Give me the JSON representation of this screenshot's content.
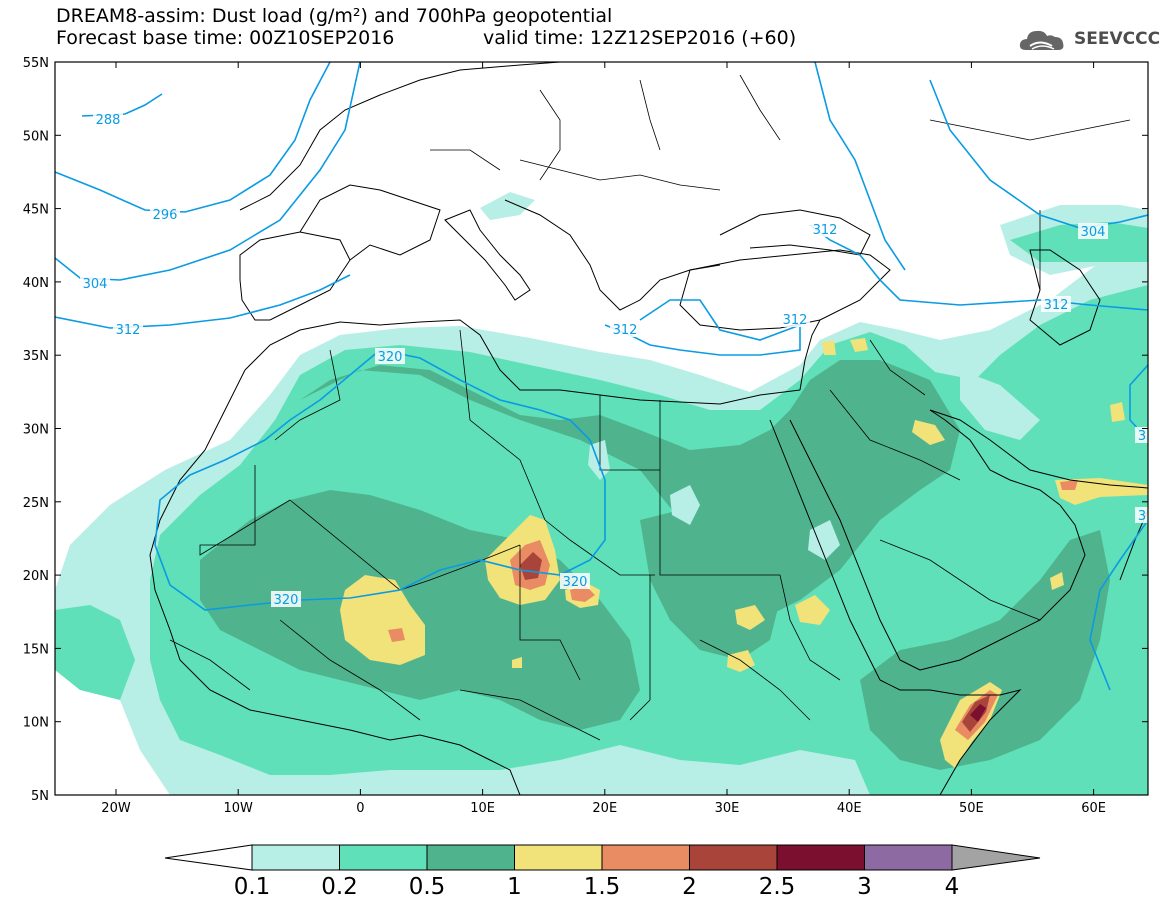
{
  "title": {
    "line1": "DREAM8-assim: Dust load (g/m²) and 700hPa geopotential",
    "base_time": "Forecast base time: 00Z10SEP2016",
    "valid_time": "valid time: 12Z12SEP2016 (+60)"
  },
  "logo": {
    "text": "SEEVCCC",
    "icon": "cloud-logo-icon"
  },
  "axes": {
    "lat_labels": [
      "55N",
      "50N",
      "45N",
      "40N",
      "35N",
      "30N",
      "25N",
      "20N",
      "15N",
      "10N",
      "5N"
    ],
    "lon_labels": [
      "20W",
      "10W",
      "0",
      "10E",
      "20E",
      "30E",
      "40E",
      "50E",
      "60E"
    ]
  },
  "isolines": {
    "color": "#0a9be3",
    "labels": [
      "288",
      "296",
      "304",
      "312",
      "312",
      "312",
      "312",
      "304",
      "312",
      "320",
      "320",
      "320",
      "3",
      "3"
    ]
  },
  "colorbar": {
    "labels": [
      "0.1",
      "0.2",
      "0.5",
      "1",
      "1.5",
      "2",
      "2.5",
      "3",
      "4"
    ],
    "colors": [
      "#b7eee6",
      "#5fe0b8",
      "#4fb48e",
      "#f1e27a",
      "#e98c63",
      "#a8443a",
      "#7a0f30",
      "#8e6aa3"
    ],
    "arrow_low_color": "#ffffff",
    "arrow_high_color": "#a3a3a3"
  },
  "colors": {
    "dust_lt": "#b7eee6",
    "dust_md": "#5fe0b8",
    "dust_dk": "#4fb48e",
    "dust_y": "#f1e27a",
    "dust_o": "#e98c63",
    "dust_r": "#a8443a",
    "dust_m": "#7a0f30"
  }
}
